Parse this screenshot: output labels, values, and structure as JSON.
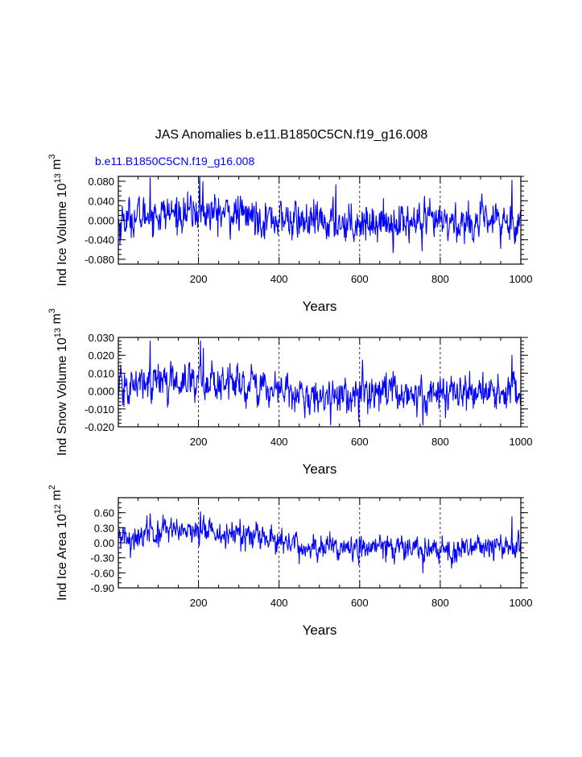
{
  "title": "JAS Anomalies b.e11.B1850C5CN.f19_g16.008",
  "case_label": "b.e11.B1850C5CN.f19_g16.008",
  "colors": {
    "series": "#0000ff",
    "case_label": "#0000ff",
    "axis": "#000000"
  },
  "chart_data": [
    {
      "type": "line",
      "ylabel": "Ind Ice Volume 10^13 m^3",
      "ylabel_parts": {
        "base": "Ind Ice Volume 10",
        "exp1": "13",
        "mid": " m",
        "exp2": "3"
      },
      "xlabel": "Years",
      "xlim": [
        1,
        1000
      ],
      "ylim": [
        -0.09,
        0.09
      ],
      "x_ticks": [
        200,
        400,
        600,
        800,
        1000
      ],
      "y_ticks": [
        0.08,
        0.04,
        0.0,
        -0.04,
        -0.08
      ],
      "y_tick_labels": [
        "0.080",
        "0.040",
        "0.000",
        "-0.040",
        "-0.080"
      ],
      "y_minor_step": 0.01,
      "grid": "dashed vertical at x ticks",
      "series": [
        {
          "sigma": 0.021,
          "trend": [
            [
              1,
              0.0
            ],
            [
              80,
              0.012
            ],
            [
              200,
              0.016
            ],
            [
              300,
              0.012
            ],
            [
              400,
              0.002
            ],
            [
              500,
              -0.006
            ],
            [
              600,
              -0.003
            ],
            [
              700,
              -0.004
            ],
            [
              800,
              -0.006
            ],
            [
              900,
              -0.004
            ],
            [
              1000,
              -0.002
            ]
          ],
          "peaks": [
            [
              80,
              0.087
            ],
            [
              203,
              0.088
            ],
            [
              211,
              0.079
            ],
            [
              541,
              0.073
            ],
            [
              978,
              0.082
            ],
            [
              755,
              -0.063
            ],
            [
              5,
              -0.048
            ],
            [
              950,
              -0.058
            ]
          ]
        }
      ]
    },
    {
      "type": "line",
      "ylabel": "Ind Snow Volume 10^13 m^3",
      "ylabel_parts": {
        "base": "Ind Snow Volume 10",
        "exp1": "13",
        "mid": " m",
        "exp2": "3"
      },
      "xlabel": "Years",
      "xlim": [
        1,
        1000
      ],
      "ylim": [
        -0.02,
        0.03
      ],
      "x_ticks": [
        200,
        400,
        600,
        800,
        1000
      ],
      "y_ticks": [
        0.03,
        0.02,
        0.01,
        0.0,
        -0.01,
        -0.02
      ],
      "y_tick_labels": [
        "0.030",
        "0.020",
        "0.010",
        "0.000",
        "-0.010",
        "-0.020"
      ],
      "y_minor_step": 0.002,
      "grid": "dashed vertical at x ticks",
      "series": [
        {
          "sigma": 0.0055,
          "trend": [
            [
              1,
              0.0
            ],
            [
              80,
              0.005
            ],
            [
              200,
              0.006
            ],
            [
              300,
              0.004
            ],
            [
              400,
              0.0
            ],
            [
              500,
              -0.003
            ],
            [
              600,
              -0.002
            ],
            [
              700,
              -0.001
            ],
            [
              800,
              -0.002
            ],
            [
              900,
              -0.001
            ],
            [
              1000,
              -0.002
            ]
          ],
          "peaks": [
            [
              80,
              0.028
            ],
            [
              205,
              0.028
            ],
            [
              212,
              0.024
            ],
            [
              978,
              0.02
            ],
            [
              757,
              -0.019
            ],
            [
              598,
              -0.017
            ],
            [
              464,
              -0.015
            ]
          ]
        }
      ]
    },
    {
      "type": "line",
      "ylabel": "Ind Ice Area 10^12 m^2",
      "ylabel_parts": {
        "base": "Ind Ice Area 10",
        "exp1": "12",
        "mid": " m",
        "exp2": "2"
      },
      "xlabel": "Years",
      "xlim": [
        1,
        1000
      ],
      "ylim": [
        -0.9,
        0.9
      ],
      "x_ticks": [
        200,
        400,
        600,
        800,
        1000
      ],
      "y_ticks": [
        0.6,
        0.3,
        0.0,
        -0.3,
        -0.6,
        -0.9
      ],
      "y_tick_labels": [
        "0.60",
        "0.30",
        "0.00",
        "-0.30",
        "-0.60",
        "-0.90"
      ],
      "y_minor_step": 0.1,
      "grid": "dashed vertical at x ticks",
      "series": [
        {
          "sigma": 0.14,
          "trend": [
            [
              1,
              0.05
            ],
            [
              80,
              0.2
            ],
            [
              200,
              0.22
            ],
            [
              300,
              0.15
            ],
            [
              400,
              0.0
            ],
            [
              500,
              -0.1
            ],
            [
              600,
              -0.1
            ],
            [
              700,
              -0.08
            ],
            [
              800,
              -0.12
            ],
            [
              900,
              -0.1
            ],
            [
              1000,
              -0.08
            ]
          ],
          "peaks": [
            [
              80,
              0.58
            ],
            [
              205,
              0.62
            ],
            [
              213,
              0.55
            ],
            [
              978,
              0.52
            ],
            [
              757,
              -0.6
            ],
            [
              598,
              -0.45
            ],
            [
              450,
              -0.42
            ]
          ]
        }
      ]
    }
  ]
}
